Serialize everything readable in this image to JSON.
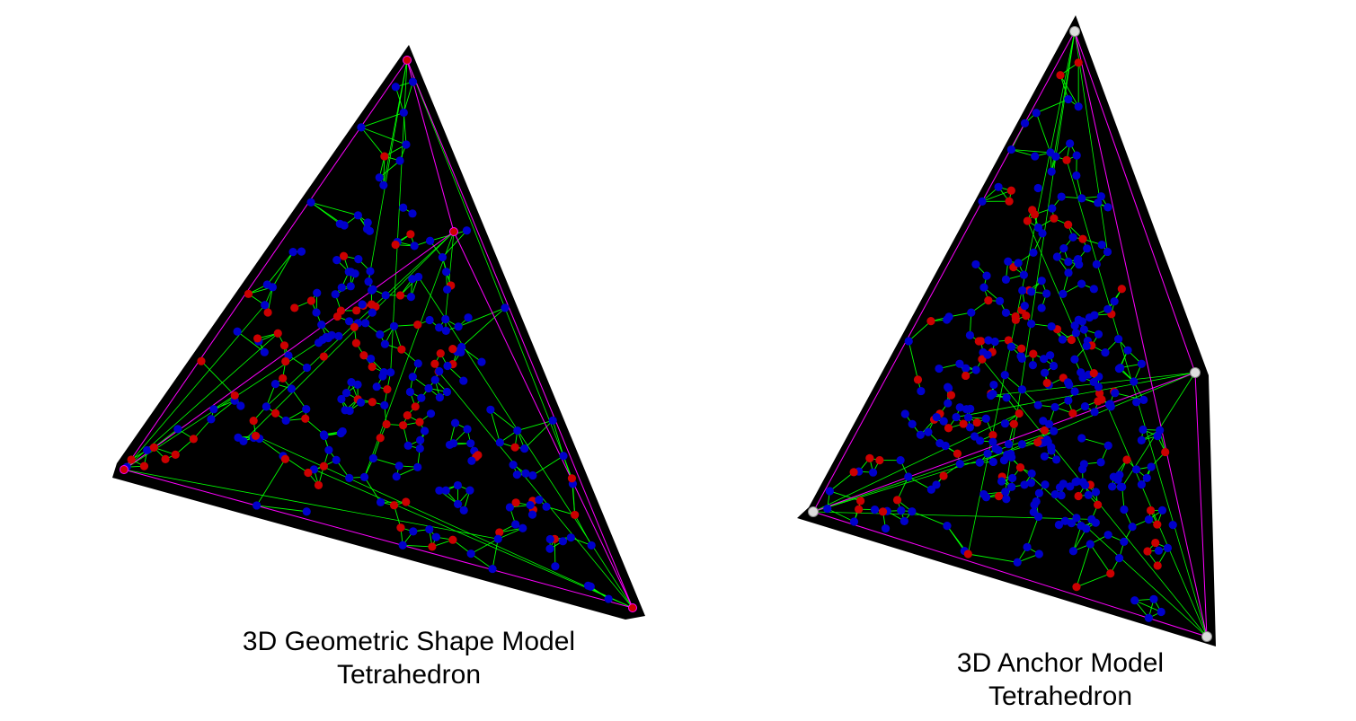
{
  "colors": {
    "background": "#ffffff",
    "tetra_fill": "#000000",
    "edge": "#ff00ff",
    "link": "#00ff00",
    "unknown_node": "#0000cc",
    "anchor_node": "#cc0000",
    "anchor_vertex": "#dddddd"
  },
  "figures": [
    {
      "caption_line1": "3D Geometric Shape Model",
      "caption_line2": "Tetrahedron",
      "shape": "tetrahedron",
      "vertex_marker": "red"
    },
    {
      "caption_line1": "3D Anchor Model",
      "caption_line2": "Tetrahedron",
      "shape": "tetrahedron",
      "vertex_marker": "white"
    }
  ]
}
